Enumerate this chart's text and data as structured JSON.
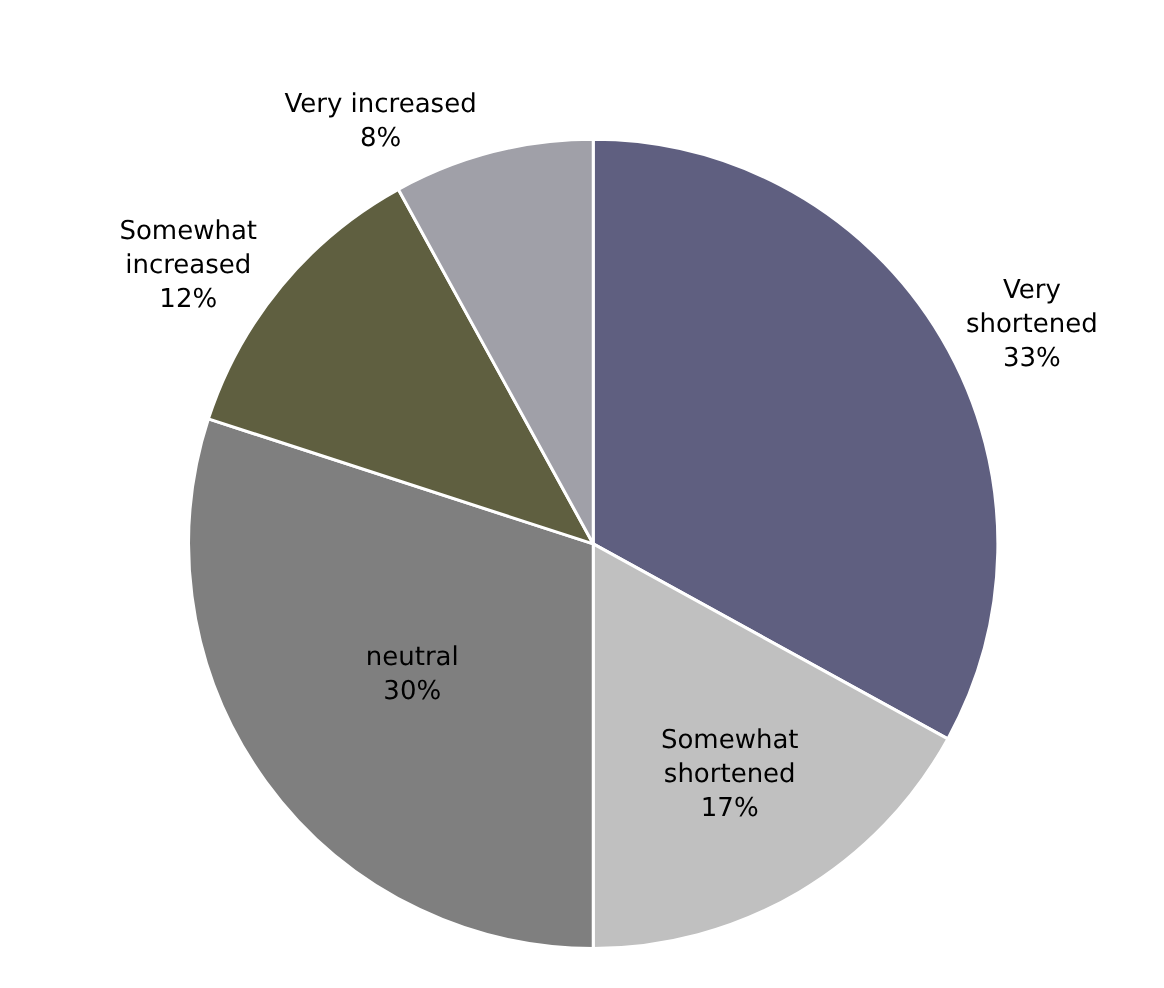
{
  "chart_data": {
    "type": "pie",
    "categories": [
      "Very shortened",
      "Somewhat shortened",
      "neutral",
      "Somewhat increased",
      "Very increased"
    ],
    "values": [
      33,
      17,
      30,
      12,
      8
    ],
    "value_labels": [
      "33%",
      "17%",
      "30%",
      "12%",
      "8%"
    ],
    "colors": [
      "#5f5f80",
      "#c0c0c0",
      "#7f7f7f",
      "#5f5f40",
      "#a0a0a8"
    ],
    "legend": false
  }
}
